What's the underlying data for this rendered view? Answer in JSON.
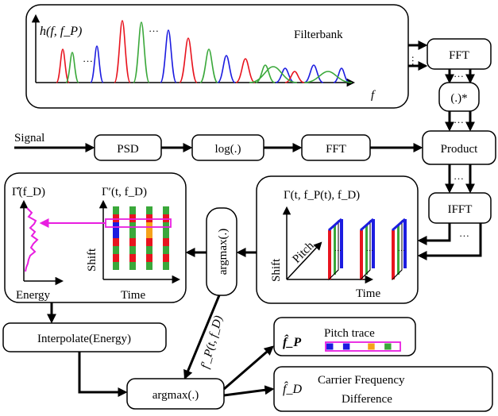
{
  "filterbank": {
    "ylabel": "h(f, f_P)",
    "title": "Filterbank",
    "xlabel": "f",
    "ellipsis": "…"
  },
  "nodes": {
    "signal": "Signal",
    "psd": "PSD",
    "log": "log(.)",
    "fft_mid": "FFT",
    "fft_top": "FFT",
    "conj": "(.)*",
    "product": "Product",
    "ifft": "IFFT",
    "argmax_mid": "argmax(.)",
    "interpolate": "Interpolate(Energy)",
    "argmax_bottom": "argmax(.)"
  },
  "gamma3d": {
    "title": "Γ(t, f_P(t), f_D)",
    "shift": "Shift",
    "pitch": "Pitch",
    "time": "Time"
  },
  "gamma_left": {
    "title_hat": "Γ̂(f_D)",
    "title_prime": "Γ′(t, f_D)",
    "energy": "Energy",
    "shift": "Shift",
    "time": "Time"
  },
  "fp_prime_label": "f′_P(t, f_D)",
  "outputs": {
    "pitch_symbol": "f̂_P",
    "pitch_label": "Pitch trace",
    "fd_symbol": "f̂_D",
    "fd_line1": "Carrier Frequency",
    "fd_line2": "Difference"
  },
  "colors": {
    "red": "#e8141e",
    "green": "#3aa83a",
    "blue": "#1c1ce0",
    "orange": "#f5a21a",
    "magenta": "#e81ee0"
  }
}
